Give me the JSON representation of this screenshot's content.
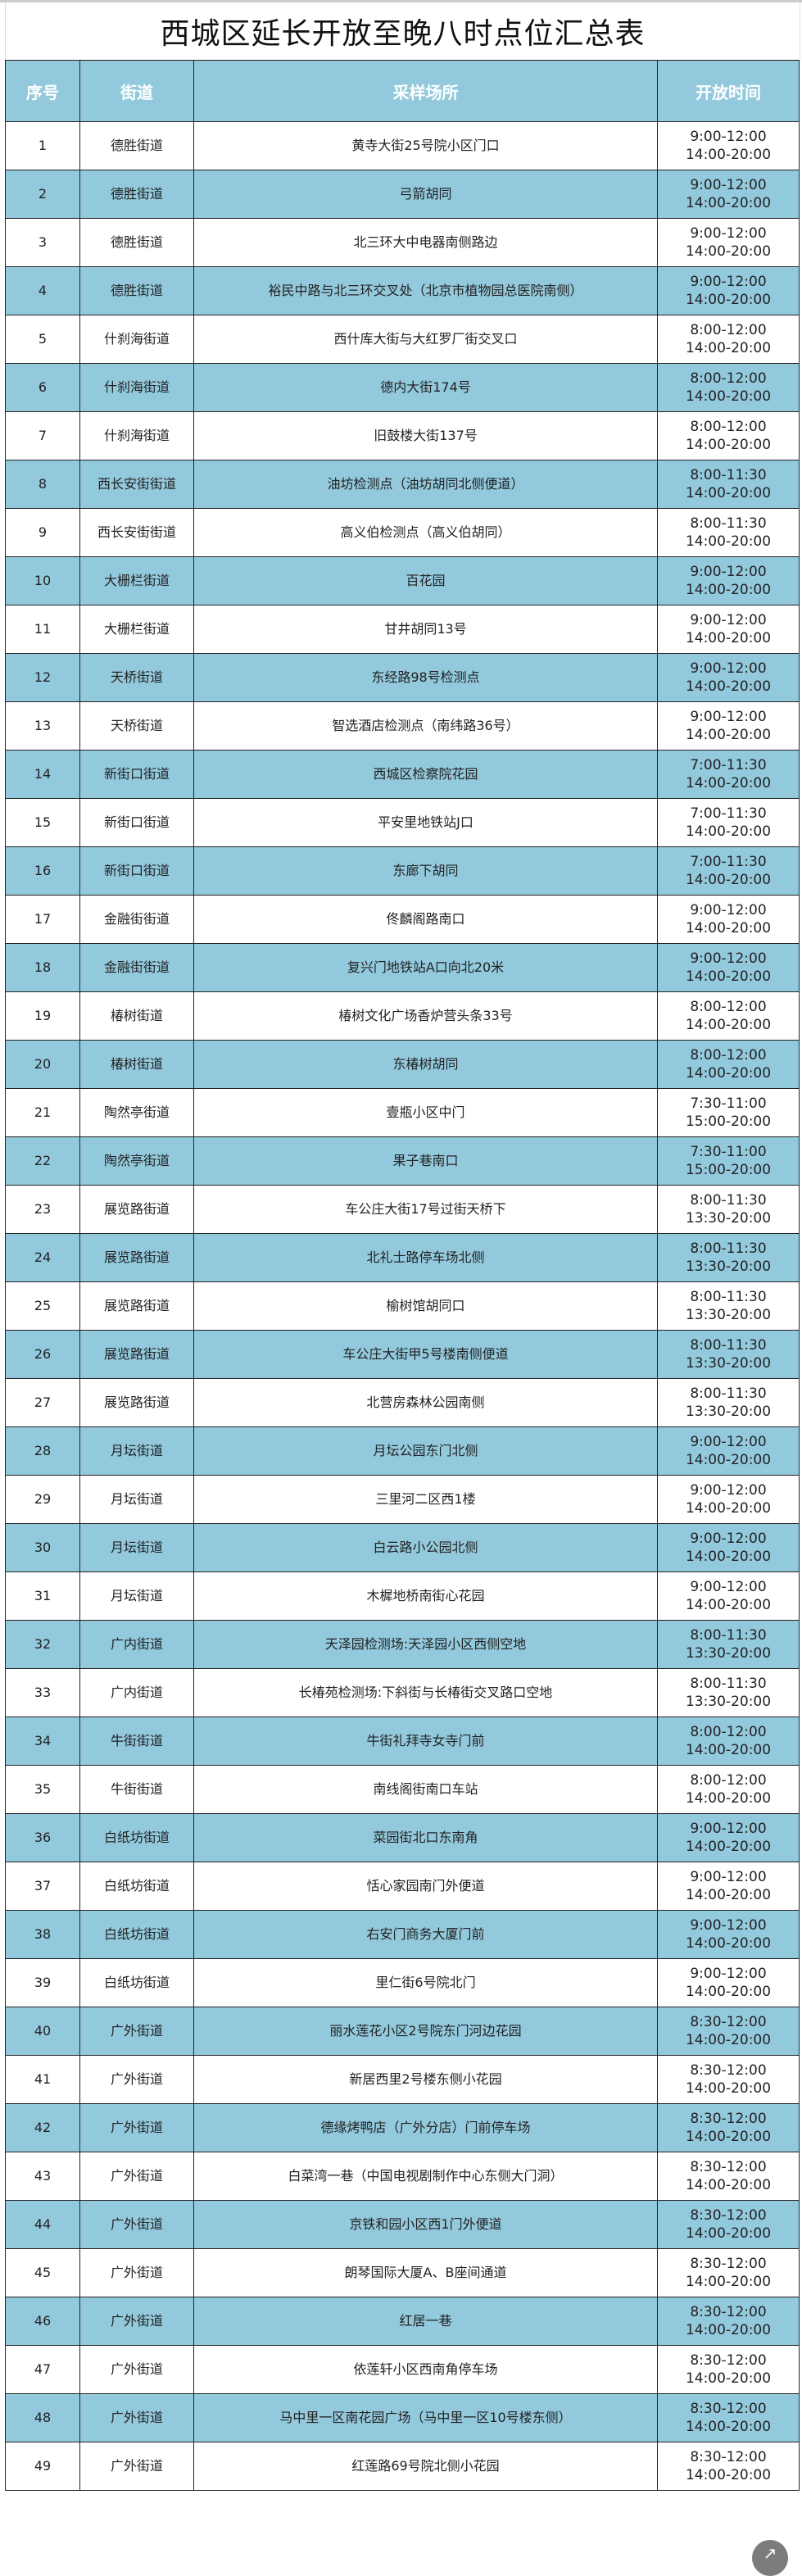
{
  "title": "西城区延长开放至晚八时点位汇总表",
  "headers": [
    "序号",
    "街道",
    "采样场所",
    "开放时间"
  ],
  "colors": {
    "header_bg": "#93c9dc",
    "alt_row_bg": "#93c9dc",
    "header_text": "#ffffff"
  },
  "rows": [
    [
      "1",
      "德胜街道",
      "黄寺大街25号院小区门口",
      "9:00-12:00",
      "14:00-20:00"
    ],
    [
      "2",
      "德胜街道",
      "弓箭胡同",
      "9:00-12:00",
      "14:00-20:00"
    ],
    [
      "3",
      "德胜街道",
      "北三环大中电器南侧路边",
      "9:00-12:00",
      "14:00-20:00"
    ],
    [
      "4",
      "德胜街道",
      "裕民中路与北三环交叉处（北京市植物园总医院南侧）",
      "9:00-12:00",
      "14:00-20:00"
    ],
    [
      "5",
      "什刹海街道",
      "西什库大街与大红罗厂街交叉口",
      "8:00-12:00",
      "14:00-20:00"
    ],
    [
      "6",
      "什刹海街道",
      "德内大街174号",
      "8:00-12:00",
      "14:00-20:00"
    ],
    [
      "7",
      "什刹海街道",
      "旧鼓楼大街137号",
      "8:00-12:00",
      "14:00-20:00"
    ],
    [
      "8",
      "西长安街街道",
      "油坊检测点（油坊胡同北侧便道）",
      "8:00-11:30",
      "14:00-20:00"
    ],
    [
      "9",
      "西长安街街道",
      "高义伯检测点（高义伯胡同）",
      "8:00-11:30",
      "14:00-20:00"
    ],
    [
      "10",
      "大栅栏街道",
      "百花园",
      "9:00-12:00",
      "14:00-20:00"
    ],
    [
      "11",
      "大栅栏街道",
      "甘井胡同13号",
      "9:00-12:00",
      "14:00-20:00"
    ],
    [
      "12",
      "天桥街道",
      "东经路98号检测点",
      "9:00-12:00",
      "14:00-20:00"
    ],
    [
      "13",
      "天桥街道",
      "智选酒店检测点（南纬路36号）",
      "9:00-12:00",
      "14:00-20:00"
    ],
    [
      "14",
      "新街口街道",
      "西城区检察院花园",
      "7:00-11:30",
      "14:00-20:00"
    ],
    [
      "15",
      "新街口街道",
      "平安里地铁站J口",
      "7:00-11:30",
      "14:00-20:00"
    ],
    [
      "16",
      "新街口街道",
      "东廊下胡同",
      "7:00-11:30",
      "14:00-20:00"
    ],
    [
      "17",
      "金融街街道",
      "佟麟阁路南口",
      "9:00-12:00",
      "14:00-20:00"
    ],
    [
      "18",
      "金融街街道",
      "复兴门地铁站A口向北20米",
      "9:00-12:00",
      "14:00-20:00"
    ],
    [
      "19",
      "椿树街道",
      "椿树文化广场香炉营头条33号",
      "8:00-12:00",
      "14:00-20:00"
    ],
    [
      "20",
      "椿树街道",
      "东椿树胡同",
      "8:00-12:00",
      "14:00-20:00"
    ],
    [
      "21",
      "陶然亭街道",
      "壹瓶小区中门",
      "7:30-11:00",
      "15:00-20:00"
    ],
    [
      "22",
      "陶然亭街道",
      "果子巷南口",
      "7:30-11:00",
      "15:00-20:00"
    ],
    [
      "23",
      "展览路街道",
      "车公庄大街17号过街天桥下",
      "8:00-11:30",
      "13:30-20:00"
    ],
    [
      "24",
      "展览路街道",
      "北礼士路停车场北侧",
      "8:00-11:30",
      "13:30-20:00"
    ],
    [
      "25",
      "展览路街道",
      "榆树馆胡同口",
      "8:00-11:30",
      "13:30-20:00"
    ],
    [
      "26",
      "展览路街道",
      "车公庄大街甲5号楼南侧便道",
      "8:00-11:30",
      "13:30-20:00"
    ],
    [
      "27",
      "展览路街道",
      "北营房森林公园南侧",
      "8:00-11:30",
      "13:30-20:00"
    ],
    [
      "28",
      "月坛街道",
      "月坛公园东门北侧",
      "9:00-12:00",
      "14:00-20:00"
    ],
    [
      "29",
      "月坛街道",
      "三里河二区西1楼",
      "9:00-12:00",
      "14:00-20:00"
    ],
    [
      "30",
      "月坛街道",
      "白云路小公园北侧",
      "9:00-12:00",
      "14:00-20:00"
    ],
    [
      "31",
      "月坛街道",
      "木樨地桥南街心花园",
      "9:00-12:00",
      "14:00-20:00"
    ],
    [
      "32",
      "广内街道",
      "天泽园检测场:天泽园小区西侧空地",
      "8:00-11:30",
      "13:30-20:00"
    ],
    [
      "33",
      "广内街道",
      "长椿苑检测场:下斜街与长椿街交叉路口空地",
      "8:00-11:30",
      "13:30-20:00"
    ],
    [
      "34",
      "牛街街道",
      "牛街礼拜寺女寺门前",
      "8:00-12:00",
      "14:00-20:00"
    ],
    [
      "35",
      "牛街街道",
      "南线阁街南口车站",
      "8:00-12:00",
      "14:00-20:00"
    ],
    [
      "36",
      "白纸坊街道",
      "菜园街北口东南角",
      "9:00-12:00",
      "14:00-20:00"
    ],
    [
      "37",
      "白纸坊街道",
      "恬心家园南门外便道",
      "9:00-12:00",
      "14:00-20:00"
    ],
    [
      "38",
      "白纸坊街道",
      "右安门商务大厦门前",
      "9:00-12:00",
      "14:00-20:00"
    ],
    [
      "39",
      "白纸坊街道",
      "里仁街6号院北门",
      "9:00-12:00",
      "14:00-20:00"
    ],
    [
      "40",
      "广外街道",
      "丽水莲花小区2号院东门河边花园",
      "8:30-12:00",
      "14:00-20:00"
    ],
    [
      "41",
      "广外街道",
      "新居西里2号楼东侧小花园",
      "8:30-12:00",
      "14:00-20:00"
    ],
    [
      "42",
      "广外街道",
      "德缘烤鸭店（广外分店）门前停车场",
      "8:30-12:00",
      "14:00-20:00"
    ],
    [
      "43",
      "广外街道",
      "白菜湾一巷（中国电视剧制作中心东侧大门洞）",
      "8:30-12:00",
      "14:00-20:00"
    ],
    [
      "44",
      "广外街道",
      "京铁和园小区西1门外便道",
      "8:30-12:00",
      "14:00-20:00"
    ],
    [
      "45",
      "广外街道",
      "朗琴国际大厦A、B座间通道",
      "8:30-12:00",
      "14:00-20:00"
    ],
    [
      "46",
      "广外街道",
      "红居一巷",
      "8:30-12:00",
      "14:00-20:00"
    ],
    [
      "47",
      "广外街道",
      "依莲轩小区西南角停车场",
      "8:30-12:00",
      "14:00-20:00"
    ],
    [
      "48",
      "广外街道",
      "马中里一区南花园广场（马中里一区10号楼东侧）",
      "8:30-12:00",
      "14:00-20:00"
    ],
    [
      "49",
      "广外街道",
      "红莲路69号院北侧小花园",
      "8:30-12:00",
      "14:00-20:00"
    ]
  ],
  "scroll_top_icon": "arrow-up-icon"
}
